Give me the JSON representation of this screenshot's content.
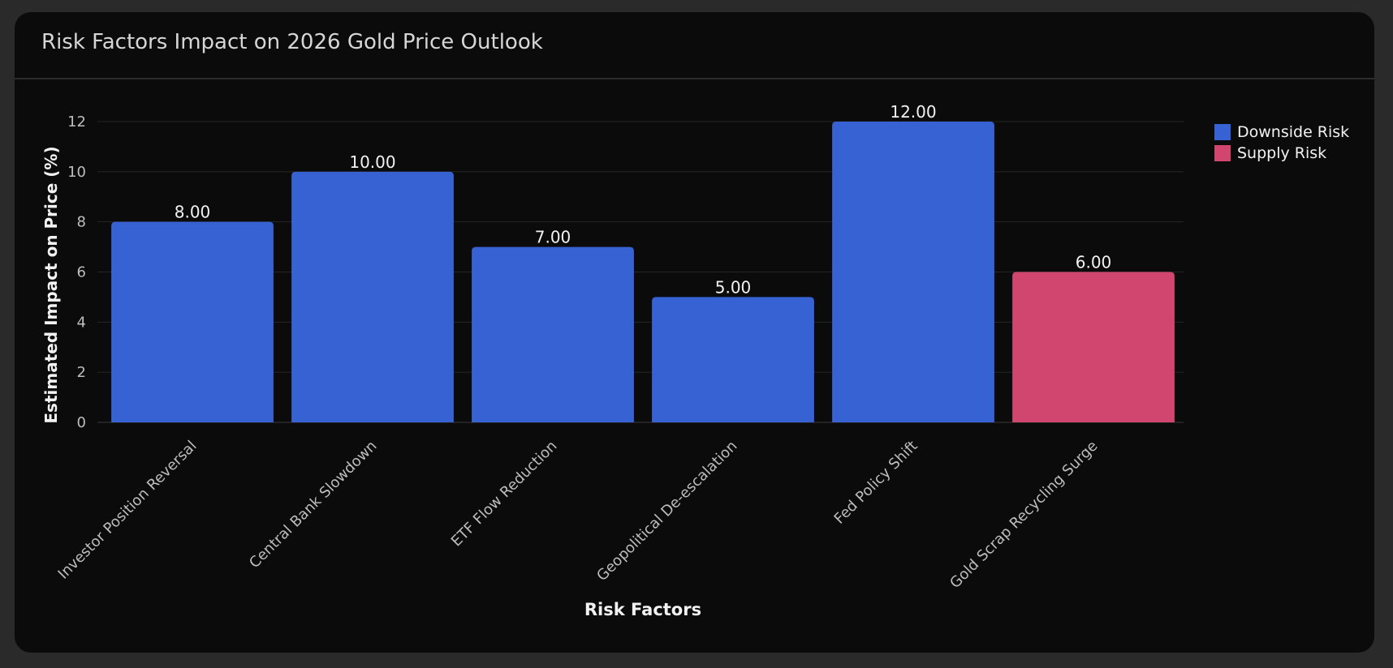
{
  "card": {
    "title": "Risk Factors Impact on 2026 Gold Price Outlook"
  },
  "chart_data": {
    "type": "bar",
    "title": "Risk Factors Impact on 2026 Gold Price Outlook",
    "xlabel": "Risk Factors",
    "ylabel": "Estimated Impact on Price (%)",
    "ylim": [
      0,
      12
    ],
    "yticks": [
      0,
      2,
      4,
      6,
      8,
      10,
      12
    ],
    "grid": true,
    "legend_position": "top-right",
    "categories": [
      "Investor Position Reversal",
      "Central Bank Slowdown",
      "ETF Flow Reduction",
      "Geopolitical De-escalation",
      "Fed Policy Shift",
      "Gold Scrap Recycling Surge"
    ],
    "values": [
      8,
      10,
      7,
      5,
      12,
      6
    ],
    "value_labels": [
      "8.00",
      "10.00",
      "7.00",
      "5.00",
      "12.00",
      "6.00"
    ],
    "bar_series": [
      "Downside Risk",
      "Downside Risk",
      "Downside Risk",
      "Downside Risk",
      "Downside Risk",
      "Supply Risk"
    ],
    "legend": [
      {
        "name": "Downside Risk",
        "color": "#3762d3"
      },
      {
        "name": "Supply Risk",
        "color": "#d1466e"
      }
    ]
  }
}
